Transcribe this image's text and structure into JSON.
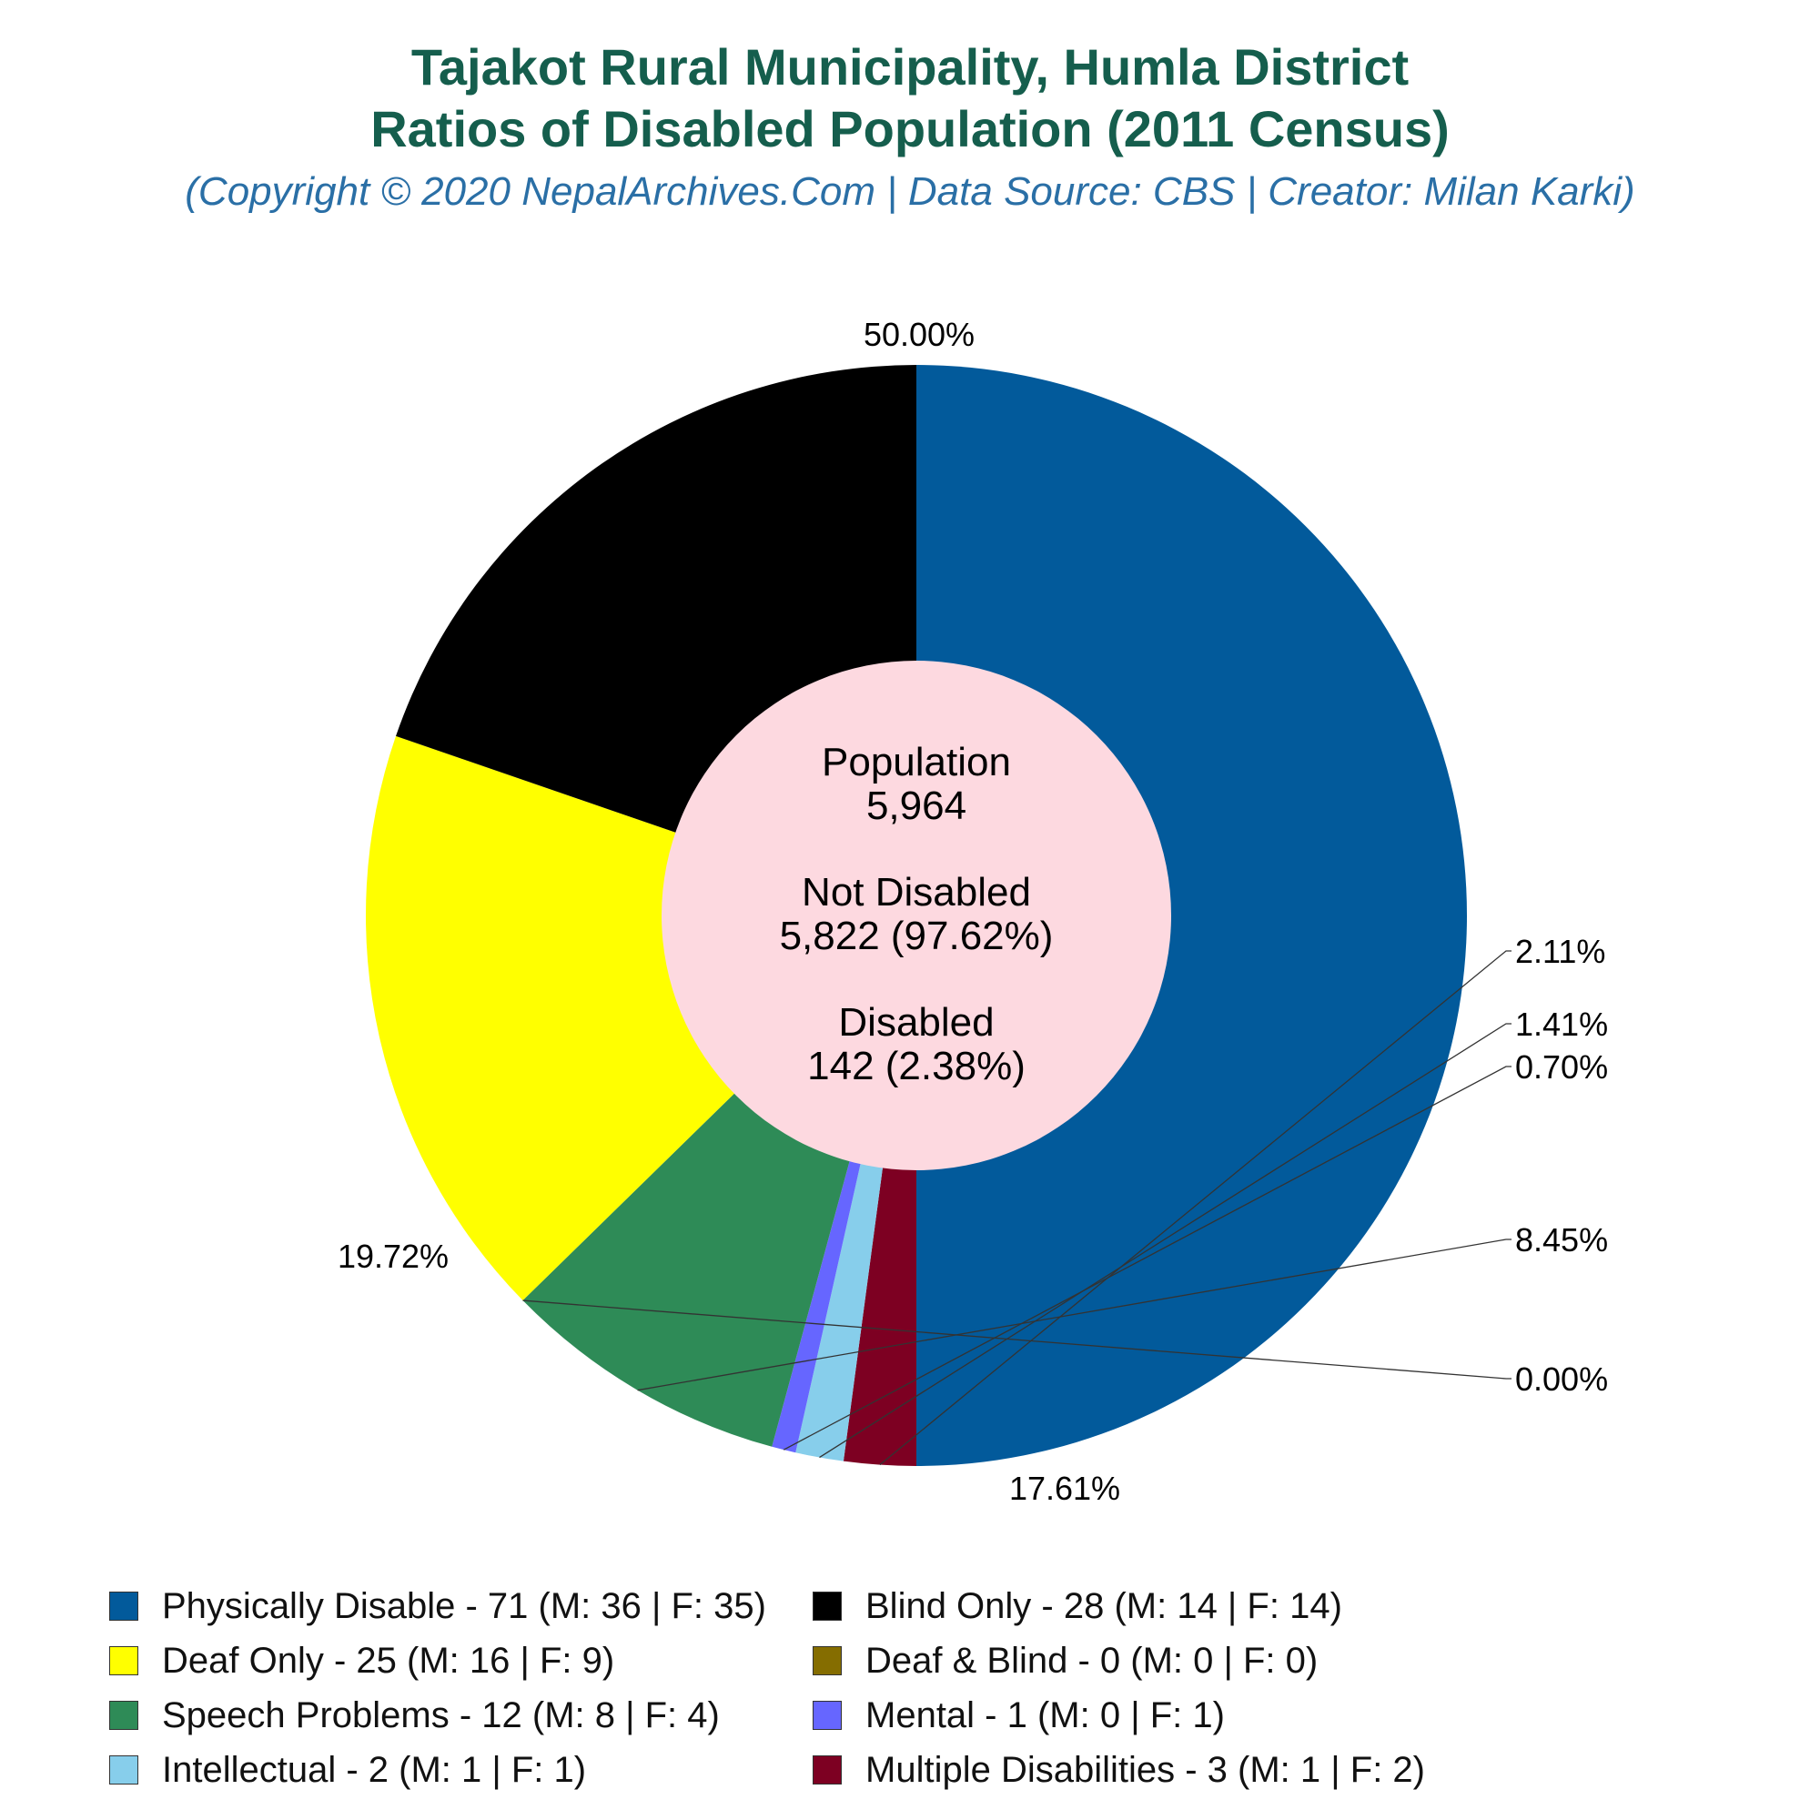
{
  "chart_data": {
    "type": "pie",
    "donut": true,
    "title_lines": [
      "Tajakot Rural Municipality, Humla District",
      "Ratios of Disabled Population (2011 Census)"
    ],
    "subtitle": "(Copyright © 2020 NepalArchives.Com | Data Source: CBS | Creator: Milan Karki)",
    "center": {
      "population_label": "Population",
      "population_value": "5,964",
      "not_disabled_label": "Not Disabled",
      "not_disabled_value": "5,822 (97.62%)",
      "disabled_label": "Disabled",
      "disabled_value": "142 (2.38%)"
    },
    "center_color": "#fdd9e0",
    "start_angle_deg": 90,
    "direction": "clockwise",
    "slices": [
      {
        "value": 71,
        "pct_label": "50.00%",
        "legend": "Physically Disable - 71 (M: 36 | F: 35)",
        "color": "#025a9b"
      },
      {
        "value": 3,
        "pct_label": "2.11%",
        "legend": "Multiple Disabilities - 3 (M: 1 | F: 2)",
        "color": "#7d0022"
      },
      {
        "value": 2,
        "pct_label": "1.41%",
        "legend": "Intellectual - 2 (M: 1 | F: 1)",
        "color": "#87ceeb"
      },
      {
        "value": 1,
        "pct_label": "0.70%",
        "legend": "Mental - 1 (M: 0 | F: 1)",
        "color": "#6666ff"
      },
      {
        "value": 12,
        "pct_label": "8.45%",
        "legend": "Speech Problems - 12 (M: 8 | F: 4)",
        "color": "#2e8b57"
      },
      {
        "value": 0,
        "pct_label": "0.00%",
        "legend": "Deaf & Blind - 0 (M: 0 | F: 0)",
        "color": "#856d00"
      },
      {
        "value": 25,
        "pct_label": "17.61%",
        "legend": "Deaf Only - 25 (M: 16 | F: 9)",
        "color": "#ffff00"
      },
      {
        "value": 28,
        "pct_label": "19.72%",
        "legend": "Blind Only - 28 (M: 14 | F: 14)",
        "color": "#000000"
      }
    ],
    "legend_order": [
      0,
      7,
      6,
      5,
      4,
      3,
      2,
      1
    ],
    "legend_placement": "bottom"
  }
}
